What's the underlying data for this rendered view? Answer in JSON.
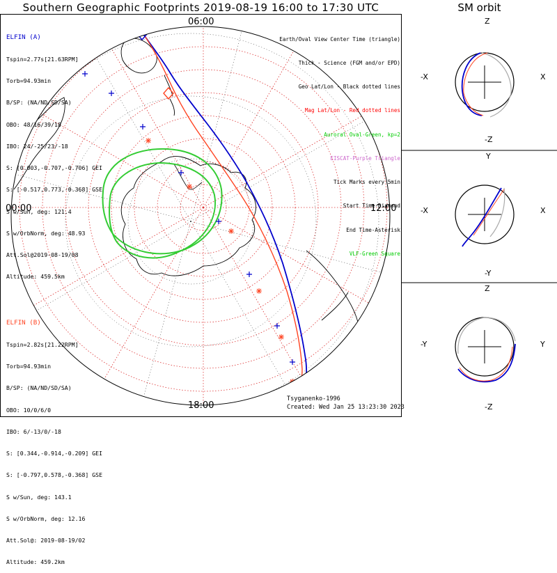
{
  "title": "Southern Geographic Footprints 2019-08-19 16:00 to 17:30 UTC",
  "orbit_title": "SM orbit",
  "mlt_labels": {
    "top": "06:00",
    "left": "00:00",
    "right": "12:00",
    "bottom": "18:00"
  },
  "elfin_a": {
    "name": "ELFIN (A)",
    "lines": [
      "Tspin=2.77s[21.63RPM]",
      "Torb=94.93min",
      "B/SP: (NA/ND/SD/SA)",
      "OBO: 48/16/39/18",
      "IBO: 24/-25/23/-18",
      "S: [0.003,-0.707,-0.706] GEI",
      "S: [-0.517,0.773,-0.368] GSE",
      "S w/Sun, deg: 121.4",
      "S w/OrbNorm, deg: 48.93",
      "Att.Sol@2019-08-19/08",
      "Altitude: 459.5km"
    ],
    "color": "#0000cc"
  },
  "elfin_b": {
    "name": "ELFIN (B)",
    "lines": [
      "Tspin=2.82s[21.22RPM]",
      "Torb=94.93min",
      "B/SP: (NA/ND/SD/SA)",
      "OBO: 10/0/6/0",
      "IBO: 6/-13/0/-18",
      "S: [0.344,-0.914,-0.209] GEI",
      "S: [-0.797,0.578,-0.368] GSE",
      "S w/Sun, deg: 143.1",
      "S w/OrbNorm, deg: 12.16",
      "Att.Sol@: 2019-08-19/02",
      "Altitude: 459.2km"
    ],
    "color": "#ff4422"
  },
  "legend": [
    {
      "text": "Earth/Oval View Center Time (triangle)",
      "color": "#000000"
    },
    {
      "text": "Thick - Science (FGM and/or EPD)",
      "color": "#000000"
    },
    {
      "text": "Geo Lat/Lon - Black dotted lines",
      "color": "#000000"
    },
    {
      "text": "Mag Lat/Lon - Red dotted lines",
      "color": "#ff0000"
    },
    {
      "text": "Auroral Oval-Green, kp=2",
      "color": "#00cc00"
    },
    {
      "text": "EISCAT-Purple Triangle",
      "color": "#cc66cc"
    },
    {
      "text": "Tick Marks every 5min",
      "color": "#000000"
    },
    {
      "text": "Start Time-Diamond",
      "color": "#000000"
    },
    {
      "text": "End Time-Asterisk",
      "color": "#000000"
    },
    {
      "text": "VLF-Green Square",
      "color": "#00cc00"
    }
  ],
  "footer": {
    "model": "Tsyganenko-1996",
    "created": "Created: Wed Jan 25 13:23:30 2023"
  },
  "orbit_panels": [
    {
      "top": "Z",
      "bottom": "-Z",
      "left": "-X",
      "right": "X"
    },
    {
      "top": "Y",
      "bottom": "-Y",
      "left": "-X",
      "right": "X"
    },
    {
      "top": "Z",
      "bottom": "-Z",
      "left": "-Y",
      "right": "Y"
    }
  ],
  "colors": {
    "elfin_a": "#0000cc",
    "elfin_b": "#ff4422",
    "oval": "#33cc33",
    "mag_grid": "#dd3333",
    "geo_grid": "#000000"
  },
  "chart_data": {
    "type": "scatter",
    "title": "Southern Geographic Footprints 2019-08-19 16:00 to 17:30 UTC",
    "projection": "south polar",
    "series": [
      {
        "name": "ELFIN (A)",
        "color": "#0000cc"
      },
      {
        "name": "ELFIN (B)",
        "color": "#ff4422"
      }
    ]
  }
}
